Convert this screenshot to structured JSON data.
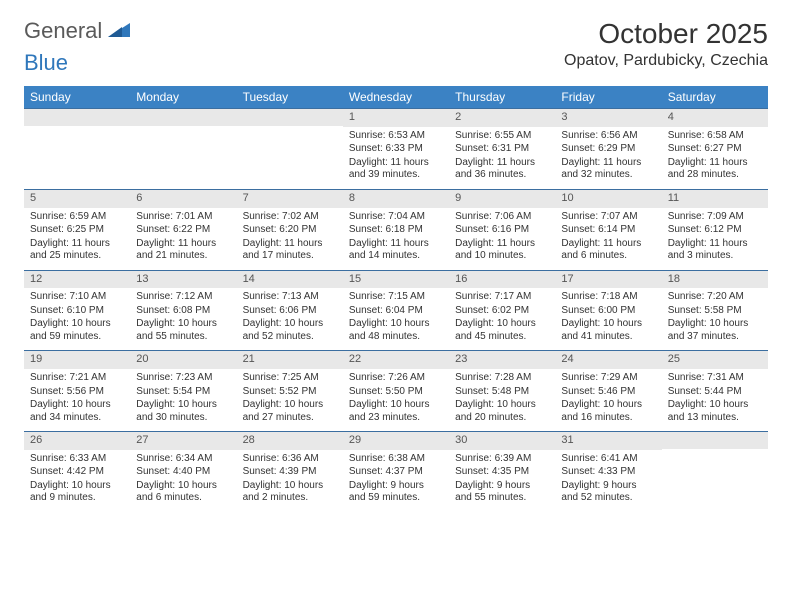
{
  "logo": {
    "part1": "General",
    "part2": "Blue"
  },
  "title": "October 2025",
  "location": "Opatov, Pardubicky, Czechia",
  "colors": {
    "header_bg": "#3b82c4",
    "header_fg": "#ffffff",
    "daynum_bg": "#e8e8e8",
    "week_border": "#3b6ea0",
    "logo_blue": "#2f77bb",
    "logo_gray": "#5a5a5a"
  },
  "day_names": [
    "Sunday",
    "Monday",
    "Tuesday",
    "Wednesday",
    "Thursday",
    "Friday",
    "Saturday"
  ],
  "weeks": [
    [
      {
        "n": "",
        "sr": "",
        "ss": "",
        "dl": ""
      },
      {
        "n": "",
        "sr": "",
        "ss": "",
        "dl": ""
      },
      {
        "n": "",
        "sr": "",
        "ss": "",
        "dl": ""
      },
      {
        "n": "1",
        "sr": "Sunrise: 6:53 AM",
        "ss": "Sunset: 6:33 PM",
        "dl": "Daylight: 11 hours and 39 minutes."
      },
      {
        "n": "2",
        "sr": "Sunrise: 6:55 AM",
        "ss": "Sunset: 6:31 PM",
        "dl": "Daylight: 11 hours and 36 minutes."
      },
      {
        "n": "3",
        "sr": "Sunrise: 6:56 AM",
        "ss": "Sunset: 6:29 PM",
        "dl": "Daylight: 11 hours and 32 minutes."
      },
      {
        "n": "4",
        "sr": "Sunrise: 6:58 AM",
        "ss": "Sunset: 6:27 PM",
        "dl": "Daylight: 11 hours and 28 minutes."
      }
    ],
    [
      {
        "n": "5",
        "sr": "Sunrise: 6:59 AM",
        "ss": "Sunset: 6:25 PM",
        "dl": "Daylight: 11 hours and 25 minutes."
      },
      {
        "n": "6",
        "sr": "Sunrise: 7:01 AM",
        "ss": "Sunset: 6:22 PM",
        "dl": "Daylight: 11 hours and 21 minutes."
      },
      {
        "n": "7",
        "sr": "Sunrise: 7:02 AM",
        "ss": "Sunset: 6:20 PM",
        "dl": "Daylight: 11 hours and 17 minutes."
      },
      {
        "n": "8",
        "sr": "Sunrise: 7:04 AM",
        "ss": "Sunset: 6:18 PM",
        "dl": "Daylight: 11 hours and 14 minutes."
      },
      {
        "n": "9",
        "sr": "Sunrise: 7:06 AM",
        "ss": "Sunset: 6:16 PM",
        "dl": "Daylight: 11 hours and 10 minutes."
      },
      {
        "n": "10",
        "sr": "Sunrise: 7:07 AM",
        "ss": "Sunset: 6:14 PM",
        "dl": "Daylight: 11 hours and 6 minutes."
      },
      {
        "n": "11",
        "sr": "Sunrise: 7:09 AM",
        "ss": "Sunset: 6:12 PM",
        "dl": "Daylight: 11 hours and 3 minutes."
      }
    ],
    [
      {
        "n": "12",
        "sr": "Sunrise: 7:10 AM",
        "ss": "Sunset: 6:10 PM",
        "dl": "Daylight: 10 hours and 59 minutes."
      },
      {
        "n": "13",
        "sr": "Sunrise: 7:12 AM",
        "ss": "Sunset: 6:08 PM",
        "dl": "Daylight: 10 hours and 55 minutes."
      },
      {
        "n": "14",
        "sr": "Sunrise: 7:13 AM",
        "ss": "Sunset: 6:06 PM",
        "dl": "Daylight: 10 hours and 52 minutes."
      },
      {
        "n": "15",
        "sr": "Sunrise: 7:15 AM",
        "ss": "Sunset: 6:04 PM",
        "dl": "Daylight: 10 hours and 48 minutes."
      },
      {
        "n": "16",
        "sr": "Sunrise: 7:17 AM",
        "ss": "Sunset: 6:02 PM",
        "dl": "Daylight: 10 hours and 45 minutes."
      },
      {
        "n": "17",
        "sr": "Sunrise: 7:18 AM",
        "ss": "Sunset: 6:00 PM",
        "dl": "Daylight: 10 hours and 41 minutes."
      },
      {
        "n": "18",
        "sr": "Sunrise: 7:20 AM",
        "ss": "Sunset: 5:58 PM",
        "dl": "Daylight: 10 hours and 37 minutes."
      }
    ],
    [
      {
        "n": "19",
        "sr": "Sunrise: 7:21 AM",
        "ss": "Sunset: 5:56 PM",
        "dl": "Daylight: 10 hours and 34 minutes."
      },
      {
        "n": "20",
        "sr": "Sunrise: 7:23 AM",
        "ss": "Sunset: 5:54 PM",
        "dl": "Daylight: 10 hours and 30 minutes."
      },
      {
        "n": "21",
        "sr": "Sunrise: 7:25 AM",
        "ss": "Sunset: 5:52 PM",
        "dl": "Daylight: 10 hours and 27 minutes."
      },
      {
        "n": "22",
        "sr": "Sunrise: 7:26 AM",
        "ss": "Sunset: 5:50 PM",
        "dl": "Daylight: 10 hours and 23 minutes."
      },
      {
        "n": "23",
        "sr": "Sunrise: 7:28 AM",
        "ss": "Sunset: 5:48 PM",
        "dl": "Daylight: 10 hours and 20 minutes."
      },
      {
        "n": "24",
        "sr": "Sunrise: 7:29 AM",
        "ss": "Sunset: 5:46 PM",
        "dl": "Daylight: 10 hours and 16 minutes."
      },
      {
        "n": "25",
        "sr": "Sunrise: 7:31 AM",
        "ss": "Sunset: 5:44 PM",
        "dl": "Daylight: 10 hours and 13 minutes."
      }
    ],
    [
      {
        "n": "26",
        "sr": "Sunrise: 6:33 AM",
        "ss": "Sunset: 4:42 PM",
        "dl": "Daylight: 10 hours and 9 minutes."
      },
      {
        "n": "27",
        "sr": "Sunrise: 6:34 AM",
        "ss": "Sunset: 4:40 PM",
        "dl": "Daylight: 10 hours and 6 minutes."
      },
      {
        "n": "28",
        "sr": "Sunrise: 6:36 AM",
        "ss": "Sunset: 4:39 PM",
        "dl": "Daylight: 10 hours and 2 minutes."
      },
      {
        "n": "29",
        "sr": "Sunrise: 6:38 AM",
        "ss": "Sunset: 4:37 PM",
        "dl": "Daylight: 9 hours and 59 minutes."
      },
      {
        "n": "30",
        "sr": "Sunrise: 6:39 AM",
        "ss": "Sunset: 4:35 PM",
        "dl": "Daylight: 9 hours and 55 minutes."
      },
      {
        "n": "31",
        "sr": "Sunrise: 6:41 AM",
        "ss": "Sunset: 4:33 PM",
        "dl": "Daylight: 9 hours and 52 minutes."
      },
      {
        "n": "",
        "sr": "",
        "ss": "",
        "dl": ""
      }
    ]
  ]
}
